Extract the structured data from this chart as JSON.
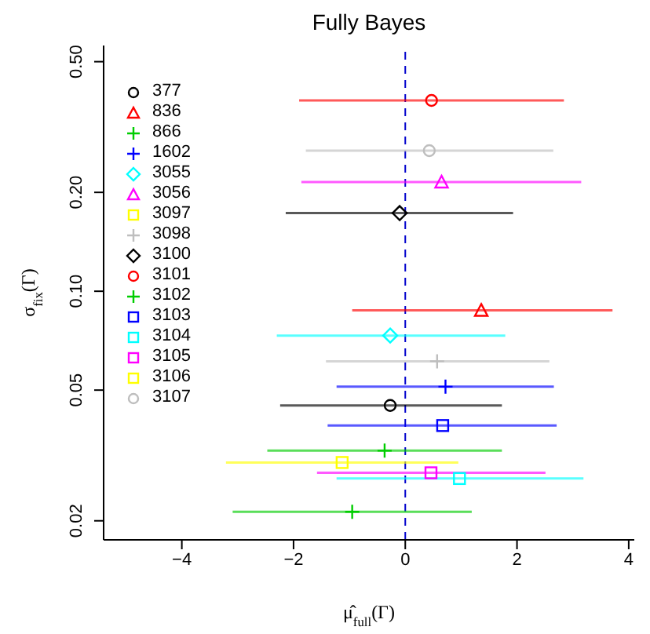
{
  "chart_data": {
    "type": "scatter",
    "title": "Fully Bayes",
    "xlabel": "μ̂$_{full}$(Γ)",
    "ylabel": "σ$_{fix}$(Γ)",
    "xlim": [
      -5.4,
      4.1
    ],
    "xticks": [
      -4,
      -2,
      0,
      2,
      4
    ],
    "ylim": [
      0.0175,
      0.56
    ],
    "yticks": [
      0.02,
      0.05,
      {
        "value": 0.1,
        "label": "0.10"
      },
      {
        "value": 0.2,
        "label": "0.20"
      },
      {
        "value": 0.5,
        "label": "0.50"
      }
    ],
    "log": "y",
    "grid": false,
    "legend": "top left",
    "ref_lines": [
      {
        "axis": "x",
        "value": 0,
        "color": "#0000cc",
        "line_style": "dashed"
      }
    ],
    "series": [
      {
        "name": "377",
        "color": "#000000",
        "marker": "circle",
        "x": [
          -0.27
        ],
        "values": [
          0.0449
        ],
        "xerrors": [
          [
            -2.24,
            1.73
          ]
        ]
      },
      {
        "name": "836",
        "color": "#ff0000",
        "marker": "triangle",
        "x": [
          1.36
        ],
        "values": [
          0.0875
        ],
        "xerrors": [
          [
            -0.95,
            3.71
          ]
        ]
      },
      {
        "name": "866",
        "color": "#00cd00",
        "marker": "cross",
        "x": [
          -0.95
        ],
        "values": [
          0.0213
        ],
        "xerrors": [
          [
            -3.09,
            1.19
          ]
        ]
      },
      {
        "name": "1602",
        "color": "#0000ff",
        "marker": "cross",
        "x": [
          0.72
        ],
        "values": [
          0.0512
        ],
        "xerrors": [
          [
            -1.23,
            2.66
          ]
        ]
      },
      {
        "name": "3055",
        "color": "#00ffff",
        "marker": "diamond",
        "x": [
          -0.27
        ],
        "values": [
          0.0733
        ],
        "xerrors": [
          [
            -2.3,
            1.79
          ]
        ]
      },
      {
        "name": "3056",
        "color": "#ff00ff",
        "marker": "triangle",
        "x": [
          0.65
        ],
        "values": [
          0.215
        ],
        "xerrors": [
          [
            -1.86,
            3.15
          ]
        ]
      },
      {
        "name": "3097",
        "color": "#ffff00",
        "marker": "square",
        "x": [
          -1.13
        ],
        "values": [
          0.0301
        ],
        "xerrors": [
          [
            -3.21,
            0.95
          ]
        ]
      },
      {
        "name": "3098",
        "color": "#bebebe",
        "marker": "cross",
        "x": [
          0.57
        ],
        "values": [
          0.0612
        ],
        "xerrors": [
          [
            -1.42,
            2.58
          ]
        ]
      },
      {
        "name": "3100",
        "color": "#000000",
        "marker": "diamond",
        "x": [
          -0.1
        ],
        "values": [
          0.173
        ],
        "xerrors": [
          [
            -2.14,
            1.93
          ]
        ]
      },
      {
        "name": "3101",
        "color": "#ff0000",
        "marker": "circle",
        "x": [
          0.47
        ],
        "values": [
          0.381
        ],
        "xerrors": [
          [
            -1.9,
            2.84
          ]
        ]
      },
      {
        "name": "3102",
        "color": "#00cd00",
        "marker": "cross",
        "x": [
          -0.37
        ],
        "values": [
          0.0327
        ],
        "xerrors": [
          [
            -2.47,
            1.73
          ]
        ]
      },
      {
        "name": "3103",
        "color": "#0000ff",
        "marker": "square",
        "x": [
          0.67
        ],
        "values": [
          0.039
        ],
        "xerrors": [
          [
            -1.39,
            2.71
          ]
        ]
      },
      {
        "name": "3104",
        "color": "#00ffff",
        "marker": "square",
        "x": [
          0.97
        ],
        "values": [
          0.0269
        ],
        "xerrors": [
          [
            -1.23,
            3.19
          ]
        ]
      },
      {
        "name": "3105",
        "color": "#ff00ff",
        "marker": "square",
        "x": [
          0.46
        ],
        "values": [
          0.028
        ],
        "xerrors": [
          [
            -1.58,
            2.51
          ]
        ]
      },
      {
        "name": "3106",
        "color": "#ffff00",
        "marker": "square",
        "x": [
          null
        ],
        "values": [
          null
        ],
        "xerrors": [
          null
        ]
      },
      {
        "name": "3107",
        "color": "#bebebe",
        "marker": "circle",
        "x": [
          0.43
        ],
        "values": [
          0.268
        ],
        "xerrors": [
          [
            -1.78,
            2.65
          ]
        ]
      }
    ]
  }
}
